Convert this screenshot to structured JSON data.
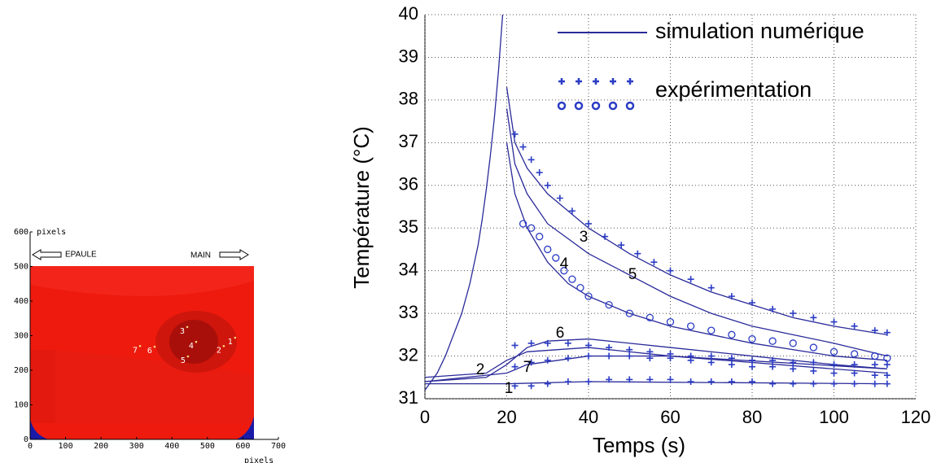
{
  "chart_data": [
    {
      "type": "image",
      "xlabel": "pixels",
      "ylabel": "pixels",
      "xlim": [
        0,
        700
      ],
      "ylim": [
        0,
        600
      ],
      "xticks": [
        0,
        100,
        200,
        300,
        400,
        500,
        600,
        700
      ],
      "yticks": [
        0,
        100,
        200,
        300,
        400,
        500,
        600
      ],
      "annotations": [
        "EPAULE",
        "MAIN"
      ],
      "points": {
        "labels": [
          "1",
          "2",
          "3",
          "4",
          "5",
          "6",
          "7"
        ],
        "x": [
          578,
          546,
          443,
          468,
          445,
          351,
          310
        ],
        "y": [
          294,
          270,
          325,
          282,
          240,
          268,
          270
        ]
      }
    },
    {
      "type": "line",
      "xlabel": "Temps (s)",
      "ylabel": "Température (°C)",
      "xlim": [
        0,
        120
      ],
      "ylim": [
        31,
        40
      ],
      "xticks": [
        0,
        20,
        40,
        60,
        80,
        100,
        120
      ],
      "yticks": [
        31,
        32,
        33,
        34,
        35,
        36,
        37,
        38,
        39,
        40
      ],
      "grid": true,
      "legend_position": "upper right",
      "series": [
        {
          "name": "simulation numérique",
          "color": "#2a2a9a",
          "marker": "none",
          "curves": [
            {
              "label": null,
              "x": [
                0,
                3,
                5,
                7,
                9,
                11,
                13,
                14,
                15,
                16,
                17,
                18,
                19
              ],
              "y": [
                31.2,
                31.6,
                32.0,
                32.5,
                33.0,
                33.7,
                34.6,
                35.2,
                35.9,
                36.7,
                37.6,
                38.7,
                40.0
              ]
            },
            {
              "label": "3",
              "x": [
                20,
                22,
                25,
                30,
                40,
                50,
                60,
                70,
                80,
                90,
                100,
                113
              ],
              "y": [
                38.3,
                37.0,
                36.4,
                35.8,
                35.0,
                34.4,
                33.9,
                33.5,
                33.2,
                32.9,
                32.7,
                32.5
              ]
            },
            {
              "label": "5",
              "x": [
                20,
                22,
                25,
                30,
                40,
                50,
                60,
                70,
                80,
                90,
                100,
                113
              ],
              "y": [
                37.8,
                36.5,
                35.8,
                35.1,
                34.4,
                33.9,
                33.4,
                33.0,
                32.7,
                32.5,
                32.3,
                32.0
              ]
            },
            {
              "label": "4",
              "x": [
                20,
                22,
                25,
                30,
                35,
                40,
                50,
                60,
                80,
                100,
                113
              ],
              "y": [
                37.0,
                35.8,
                35.0,
                34.2,
                33.7,
                33.4,
                33.0,
                32.7,
                32.3,
                32.0,
                31.9
              ]
            },
            {
              "label": "6",
              "x": [
                0,
                15,
                20,
                25,
                30,
                40,
                60,
                80,
                100,
                113
              ],
              "y": [
                31.4,
                31.5,
                31.8,
                32.2,
                32.35,
                32.4,
                32.2,
                32.0,
                31.8,
                31.7
              ]
            },
            {
              "label": "2",
              "x": [
                0,
                15,
                20,
                25,
                40,
                60,
                113
              ],
              "y": [
                31.5,
                31.6,
                31.9,
                32.1,
                32.2,
                32.0,
                31.7
              ]
            },
            {
              "label": "7",
              "x": [
                0,
                20,
                25,
                40,
                60,
                113
              ],
              "y": [
                31.4,
                31.6,
                31.8,
                32.0,
                32.0,
                31.6
              ]
            },
            {
              "label": "1",
              "x": [
                0,
                20,
                40,
                113
              ],
              "y": [
                31.35,
                31.35,
                31.4,
                31.35
              ]
            }
          ]
        },
        {
          "name": "expérimentation",
          "color": "#2b3cc4",
          "curves": [
            {
              "marker": "plus",
              "x": [
                22,
                24,
                26,
                28,
                30,
                33,
                36,
                40,
                44,
                48,
                52,
                56,
                60,
                65,
                70,
                75,
                80,
                85,
                90,
                95,
                100,
                105,
                110,
                113
              ],
              "y": [
                37.2,
                36.9,
                36.6,
                36.3,
                36.0,
                35.7,
                35.4,
                35.1,
                34.8,
                34.6,
                34.4,
                34.2,
                34.0,
                33.8,
                33.6,
                33.4,
                33.25,
                33.1,
                33.0,
                32.9,
                32.8,
                32.7,
                32.6,
                32.55
              ]
            },
            {
              "marker": "circle",
              "x": [
                24,
                26,
                28,
                30,
                32,
                34,
                36,
                38,
                40,
                45,
                50,
                55,
                60,
                65,
                70,
                75,
                80,
                85,
                90,
                95,
                100,
                105,
                110,
                113
              ],
              "y": [
                35.1,
                35.0,
                34.8,
                34.5,
                34.3,
                34.0,
                33.8,
                33.6,
                33.4,
                33.2,
                33.0,
                32.9,
                32.8,
                32.7,
                32.6,
                32.5,
                32.4,
                32.35,
                32.3,
                32.2,
                32.1,
                32.05,
                32.0,
                31.95
              ]
            },
            {
              "marker": "plus",
              "x": [
                22,
                26,
                30,
                35,
                40,
                45,
                50,
                55,
                60,
                65,
                70,
                75,
                80,
                85,
                90,
                95,
                100,
                105,
                110,
                113
              ],
              "y": [
                32.25,
                32.3,
                32.3,
                32.3,
                32.25,
                32.2,
                32.15,
                32.1,
                32.05,
                32.0,
                32.0,
                31.95,
                31.9,
                31.9,
                31.85,
                31.85,
                31.8,
                31.8,
                31.8,
                31.8
              ]
            },
            {
              "marker": "plus",
              "x": [
                22,
                26,
                30,
                35,
                40,
                45,
                50,
                55,
                60,
                65,
                70,
                75,
                80,
                85,
                90,
                95,
                100,
                105,
                110,
                113
              ],
              "y": [
                31.75,
                31.85,
                31.9,
                31.95,
                32.0,
                32.0,
                32.0,
                31.95,
                31.95,
                31.9,
                31.85,
                31.8,
                31.75,
                31.75,
                31.7,
                31.65,
                31.6,
                31.6,
                31.55,
                31.55
              ]
            },
            {
              "marker": "plus",
              "x": [
                22,
                26,
                30,
                35,
                40,
                45,
                50,
                55,
                60,
                65,
                70,
                75,
                80,
                85,
                90,
                95,
                100,
                105,
                110,
                113
              ],
              "y": [
                31.3,
                31.3,
                31.35,
                31.4,
                31.4,
                31.45,
                31.45,
                31.45,
                31.45,
                31.4,
                31.4,
                31.4,
                31.4,
                31.35,
                31.35,
                31.35,
                31.35,
                31.35,
                31.35,
                31.35
              ]
            }
          ]
        }
      ]
    }
  ]
}
